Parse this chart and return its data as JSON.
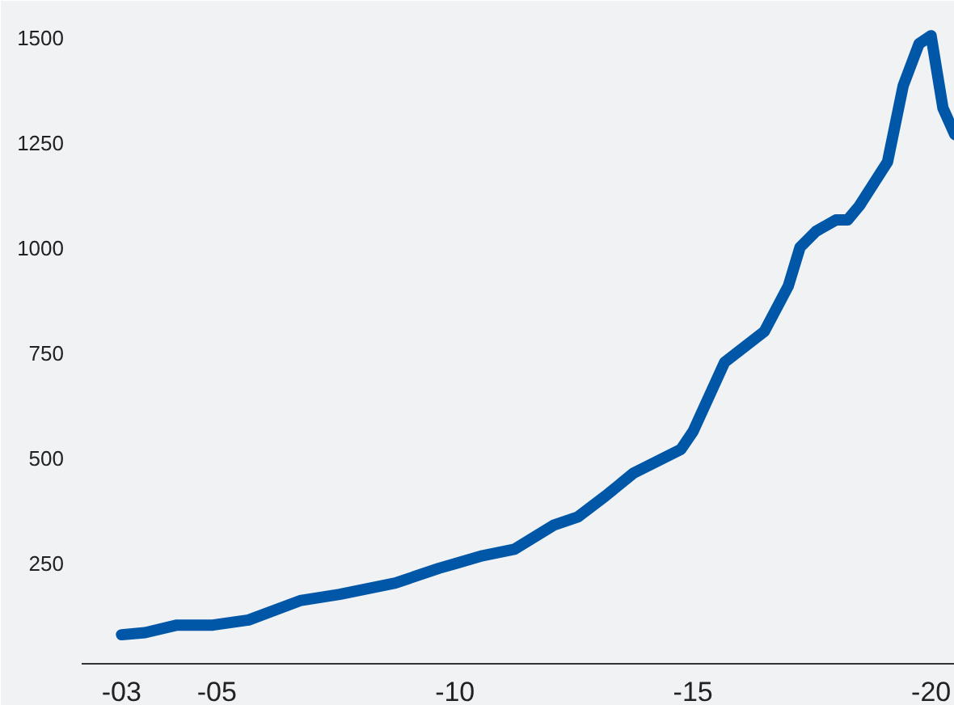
{
  "chart_data": {
    "type": "line",
    "x": [
      "2003-01",
      "2003-07",
      "2004-03",
      "2004-12",
      "2005-09",
      "2006-10",
      "2007-08",
      "2008-10",
      "2009-09",
      "2010-01",
      "2010-08",
      "2011-04",
      "2012-02",
      "2012-08",
      "2013-03",
      "2013-10",
      "2014-10",
      "2015-01",
      "2015-09",
      "2016-07",
      "2017-01",
      "2017-04",
      "2017-08",
      "2018-01",
      "2018-04",
      "2018-07",
      "2019-02",
      "2019-06",
      "2019-10",
      "2020-01",
      "2020-04",
      "2020-07"
    ],
    "series": [
      {
        "color": "#0057a8",
        "values": [
          81,
          86,
          104,
          104,
          116,
          162,
          177,
          204,
          239,
          250,
          269,
          284,
          342,
          361,
          411,
          465,
          522,
          564,
          729,
          802,
          910,
          1002,
          1040,
          1067,
          1067,
          1101,
          1205,
          1386,
          1486,
          1505,
          1333,
          1270
        ]
      }
    ],
    "xlim": [
      "2002-03",
      "2020-07"
    ],
    "ylim": [
      12,
      1588
    ],
    "xticks": [
      {
        "value": "2003",
        "label": "-03"
      },
      {
        "value": "2005",
        "label": "-05"
      },
      {
        "value": "2010",
        "label": "-10"
      },
      {
        "value": "2015",
        "label": "-15"
      },
      {
        "value": "2020",
        "label": "-20"
      }
    ],
    "yticks": [
      250,
      500,
      750,
      1000,
      1250,
      1500
    ],
    "grid": false,
    "marker": "none",
    "line_style": "solid"
  }
}
